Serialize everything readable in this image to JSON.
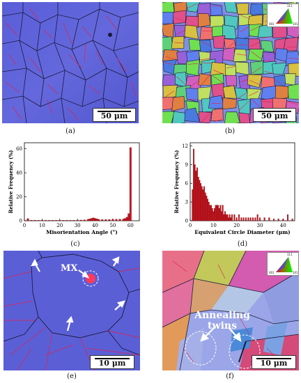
{
  "panels": {
    "a": {
      "caption": "(a)",
      "scale_label": "50 μm"
    },
    "b": {
      "caption": "(b)",
      "scale_label": "50 μm",
      "ipf_key": {
        "top": "111",
        "left": "001",
        "right": "101"
      }
    },
    "c": {
      "caption": "(c)"
    },
    "d": {
      "caption": "(d)"
    },
    "e": {
      "caption": "(e)",
      "scale_label": "10 μm",
      "annotation": "MX"
    },
    "f": {
      "caption": "(f)",
      "scale_label": "10 μm",
      "annotation_line1": "Annealing",
      "annotation_line2": "twins",
      "ipf_key": {
        "top": "111",
        "left": "001",
        "right": "101"
      }
    }
  },
  "colors": {
    "ipf_blue": "#5b5fd6",
    "twin_boundary": "#e0204a",
    "grain_boundary": "#1a1a3a",
    "bar": "#c8141e"
  },
  "chart_data": [
    {
      "type": "bar",
      "panel": "c",
      "xlabel": "Misorientation Angle (°)",
      "ylabel": "Relative Frequency (%)",
      "xlim": [
        0,
        65
      ],
      "ylim": [
        0,
        65
      ],
      "xticks": [
        0,
        10,
        20,
        30,
        40,
        50,
        60
      ],
      "yticks": [
        0,
        20,
        40,
        60
      ],
      "x": [
        2,
        4,
        6,
        8,
        10,
        12,
        14,
        16,
        18,
        20,
        22,
        24,
        26,
        28,
        30,
        32,
        34,
        36,
        37,
        38,
        39,
        40,
        41,
        42,
        44,
        46,
        48,
        50,
        52,
        54,
        56,
        57,
        58,
        59,
        60
      ],
      "values": [
        1.8,
        0.5,
        0.5,
        0.4,
        0.4,
        0.4,
        0.4,
        0.4,
        0.4,
        0.4,
        0.4,
        0.4,
        0.4,
        0.4,
        0.5,
        0.6,
        0.8,
        1.2,
        1.6,
        2.0,
        2.4,
        2.0,
        1.6,
        1.2,
        1.0,
        1.0,
        1.1,
        1.2,
        1.3,
        1.4,
        1.5,
        2.0,
        3.0,
        6.0,
        61.0
      ]
    },
    {
      "type": "bar",
      "panel": "d",
      "xlabel": "Equivalent Circle Diameter (μm)",
      "ylabel": "Relative Frequency (%)",
      "xlim": [
        0,
        45
      ],
      "ylim": [
        0,
        12.5
      ],
      "xticks": [
        0,
        10,
        20,
        30,
        40
      ],
      "yticks": [
        0,
        3,
        6,
        9,
        12
      ],
      "x": [
        1,
        1.5,
        2,
        2.5,
        3,
        3.5,
        4,
        4.5,
        5,
        5.5,
        6,
        6.5,
        7,
        7.5,
        8,
        8.5,
        9,
        9.5,
        10,
        10.5,
        11,
        11.5,
        12,
        12.5,
        13,
        13.5,
        14,
        14.5,
        15,
        15.5,
        16,
        16.5,
        17,
        17.5,
        18,
        19,
        20,
        21,
        22,
        23,
        24,
        25,
        26,
        27,
        28,
        29,
        30,
        32,
        34,
        36,
        38,
        40,
        42,
        44
      ],
      "values": [
        5.0,
        11.5,
        9.0,
        8.0,
        8.5,
        7.0,
        6.5,
        6.0,
        5.5,
        5.0,
        5.5,
        4.5,
        4.0,
        3.5,
        3.0,
        2.5,
        2.5,
        2.0,
        1.5,
        2.0,
        2.5,
        2.5,
        2.5,
        2.0,
        2.5,
        1.5,
        2.5,
        1.0,
        1.5,
        1.0,
        1.0,
        0.5,
        1.0,
        0.5,
        1.0,
        1.0,
        0.5,
        1.0,
        0.5,
        0.5,
        0.5,
        0.5,
        0.5,
        0.5,
        0.5,
        1.0,
        0.5,
        0.5,
        0.5,
        0.3,
        0.3,
        0.3,
        1.0,
        0.3
      ]
    }
  ]
}
